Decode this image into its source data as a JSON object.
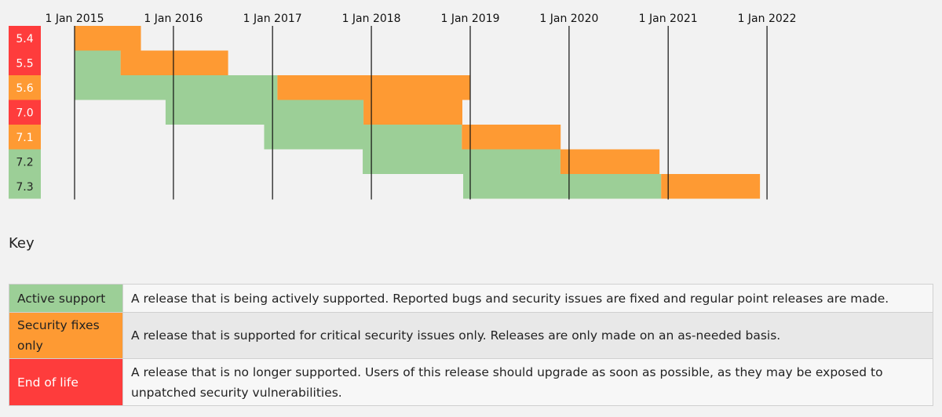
{
  "colors": {
    "active": "#9ccf97",
    "security": "#fe9a33",
    "eol": "#fe3c3c",
    "line": "#111111"
  },
  "chart_data": {
    "type": "gantt",
    "x_ticks": [
      "2015-01-01",
      "2016-01-01",
      "2017-01-01",
      "2018-01-01",
      "2019-01-01",
      "2020-01-01",
      "2021-01-01",
      "2022-01-01"
    ],
    "x_tick_labels": [
      "1 Jan 2015",
      "1 Jan 2016",
      "1 Jan 2017",
      "1 Jan 2018",
      "1 Jan 2019",
      "1 Jan 2020",
      "1 Jan 2021",
      "1 Jan 2022"
    ],
    "releases": [
      {
        "version": "5.4",
        "status": "eol",
        "active": [
          "2014-12-31",
          "2014-12-31"
        ],
        "security": [
          "2014-12-31",
          "2015-09-03"
        ]
      },
      {
        "version": "5.5",
        "status": "eol",
        "active": [
          "2014-12-31",
          "2015-06-20"
        ],
        "security": [
          "2015-06-20",
          "2016-07-21"
        ]
      },
      {
        "version": "5.6",
        "status": "security",
        "active": [
          "2014-12-31",
          "2017-01-19"
        ],
        "security": [
          "2017-01-19",
          "2018-12-31"
        ]
      },
      {
        "version": "7.0",
        "status": "eol",
        "active": [
          "2015-12-03",
          "2017-12-03"
        ],
        "security": [
          "2017-12-03",
          "2018-12-03"
        ]
      },
      {
        "version": "7.1",
        "status": "security",
        "active": [
          "2016-12-01",
          "2018-12-01"
        ],
        "security": [
          "2018-12-01",
          "2019-12-01"
        ]
      },
      {
        "version": "7.2",
        "status": "active",
        "active": [
          "2017-11-30",
          "2019-11-30"
        ],
        "security": [
          "2019-11-30",
          "2020-11-30"
        ]
      },
      {
        "version": "7.3",
        "status": "active",
        "active": [
          "2018-12-06",
          "2020-12-06"
        ],
        "security": [
          "2020-12-06",
          "2021-12-06"
        ]
      }
    ]
  },
  "key": {
    "title": "Key",
    "rows": [
      {
        "label": "Active support",
        "description": "A release that is being actively supported. Reported bugs and security issues are fixed and regular point releases are made."
      },
      {
        "label": "Security fixes only",
        "description": "A release that is supported for critical security issues only. Releases are only made on an as-needed basis."
      },
      {
        "label": "End of life",
        "description": "A release that is no longer supported. Users of this release should upgrade as soon as possible, as they may be exposed to unpatched security vulnerabilities."
      }
    ]
  }
}
